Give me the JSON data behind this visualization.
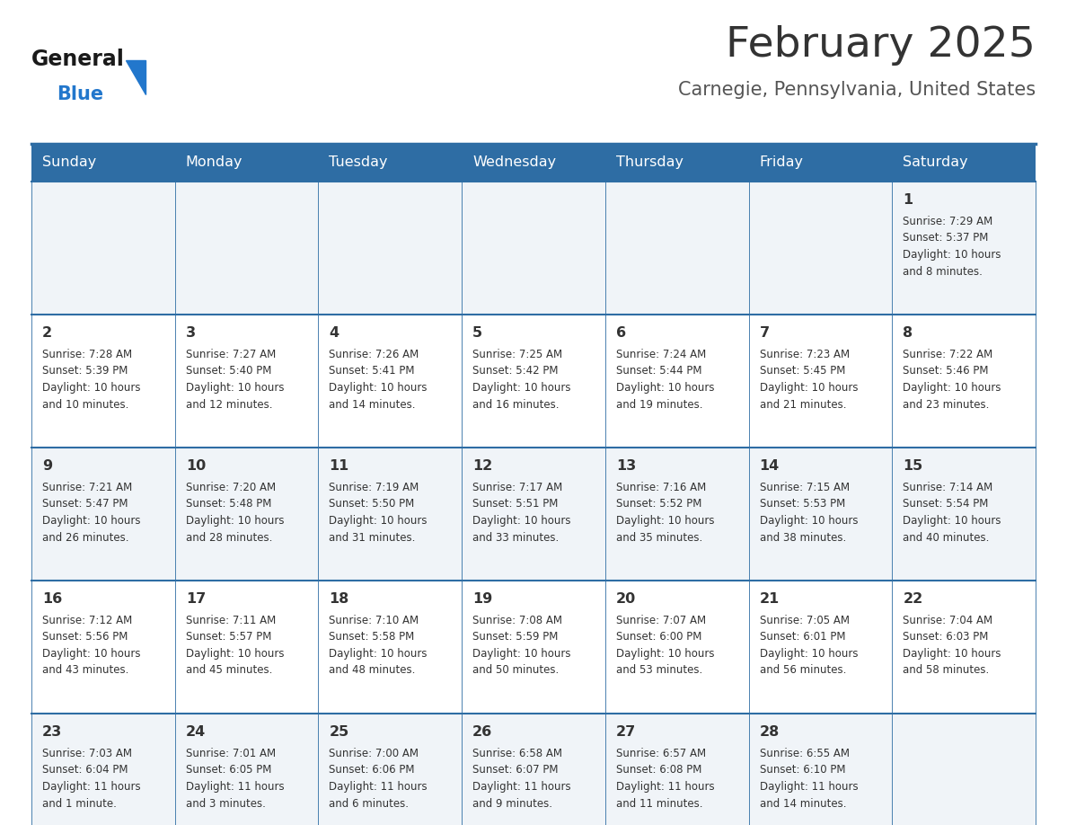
{
  "title": "February 2025",
  "subtitle": "Carnegie, Pennsylvania, United States",
  "header_bg": "#2e6da4",
  "header_text_color": "#ffffff",
  "days_of_week": [
    "Sunday",
    "Monday",
    "Tuesday",
    "Wednesday",
    "Thursday",
    "Friday",
    "Saturday"
  ],
  "row_bg_odd": "#f0f4f8",
  "row_bg_even": "#ffffff",
  "cell_border_color": "#2e6da4",
  "day_number_color": "#333333",
  "info_text_color": "#333333",
  "title_color": "#333333",
  "subtitle_color": "#555555",
  "logo_general_color": "#1a1a1a",
  "logo_blue_color": "#2277cc",
  "calendar_data": [
    [
      {
        "day": null,
        "info": null
      },
      {
        "day": null,
        "info": null
      },
      {
        "day": null,
        "info": null
      },
      {
        "day": null,
        "info": null
      },
      {
        "day": null,
        "info": null
      },
      {
        "day": null,
        "info": null
      },
      {
        "day": 1,
        "info": "Sunrise: 7:29 AM\nSunset: 5:37 PM\nDaylight: 10 hours\nand 8 minutes."
      }
    ],
    [
      {
        "day": 2,
        "info": "Sunrise: 7:28 AM\nSunset: 5:39 PM\nDaylight: 10 hours\nand 10 minutes."
      },
      {
        "day": 3,
        "info": "Sunrise: 7:27 AM\nSunset: 5:40 PM\nDaylight: 10 hours\nand 12 minutes."
      },
      {
        "day": 4,
        "info": "Sunrise: 7:26 AM\nSunset: 5:41 PM\nDaylight: 10 hours\nand 14 minutes."
      },
      {
        "day": 5,
        "info": "Sunrise: 7:25 AM\nSunset: 5:42 PM\nDaylight: 10 hours\nand 16 minutes."
      },
      {
        "day": 6,
        "info": "Sunrise: 7:24 AM\nSunset: 5:44 PM\nDaylight: 10 hours\nand 19 minutes."
      },
      {
        "day": 7,
        "info": "Sunrise: 7:23 AM\nSunset: 5:45 PM\nDaylight: 10 hours\nand 21 minutes."
      },
      {
        "day": 8,
        "info": "Sunrise: 7:22 AM\nSunset: 5:46 PM\nDaylight: 10 hours\nand 23 minutes."
      }
    ],
    [
      {
        "day": 9,
        "info": "Sunrise: 7:21 AM\nSunset: 5:47 PM\nDaylight: 10 hours\nand 26 minutes."
      },
      {
        "day": 10,
        "info": "Sunrise: 7:20 AM\nSunset: 5:48 PM\nDaylight: 10 hours\nand 28 minutes."
      },
      {
        "day": 11,
        "info": "Sunrise: 7:19 AM\nSunset: 5:50 PM\nDaylight: 10 hours\nand 31 minutes."
      },
      {
        "day": 12,
        "info": "Sunrise: 7:17 AM\nSunset: 5:51 PM\nDaylight: 10 hours\nand 33 minutes."
      },
      {
        "day": 13,
        "info": "Sunrise: 7:16 AM\nSunset: 5:52 PM\nDaylight: 10 hours\nand 35 minutes."
      },
      {
        "day": 14,
        "info": "Sunrise: 7:15 AM\nSunset: 5:53 PM\nDaylight: 10 hours\nand 38 minutes."
      },
      {
        "day": 15,
        "info": "Sunrise: 7:14 AM\nSunset: 5:54 PM\nDaylight: 10 hours\nand 40 minutes."
      }
    ],
    [
      {
        "day": 16,
        "info": "Sunrise: 7:12 AM\nSunset: 5:56 PM\nDaylight: 10 hours\nand 43 minutes."
      },
      {
        "day": 17,
        "info": "Sunrise: 7:11 AM\nSunset: 5:57 PM\nDaylight: 10 hours\nand 45 minutes."
      },
      {
        "day": 18,
        "info": "Sunrise: 7:10 AM\nSunset: 5:58 PM\nDaylight: 10 hours\nand 48 minutes."
      },
      {
        "day": 19,
        "info": "Sunrise: 7:08 AM\nSunset: 5:59 PM\nDaylight: 10 hours\nand 50 minutes."
      },
      {
        "day": 20,
        "info": "Sunrise: 7:07 AM\nSunset: 6:00 PM\nDaylight: 10 hours\nand 53 minutes."
      },
      {
        "day": 21,
        "info": "Sunrise: 7:05 AM\nSunset: 6:01 PM\nDaylight: 10 hours\nand 56 minutes."
      },
      {
        "day": 22,
        "info": "Sunrise: 7:04 AM\nSunset: 6:03 PM\nDaylight: 10 hours\nand 58 minutes."
      }
    ],
    [
      {
        "day": 23,
        "info": "Sunrise: 7:03 AM\nSunset: 6:04 PM\nDaylight: 11 hours\nand 1 minute."
      },
      {
        "day": 24,
        "info": "Sunrise: 7:01 AM\nSunset: 6:05 PM\nDaylight: 11 hours\nand 3 minutes."
      },
      {
        "day": 25,
        "info": "Sunrise: 7:00 AM\nSunset: 6:06 PM\nDaylight: 11 hours\nand 6 minutes."
      },
      {
        "day": 26,
        "info": "Sunrise: 6:58 AM\nSunset: 6:07 PM\nDaylight: 11 hours\nand 9 minutes."
      },
      {
        "day": 27,
        "info": "Sunrise: 6:57 AM\nSunset: 6:08 PM\nDaylight: 11 hours\nand 11 minutes."
      },
      {
        "day": 28,
        "info": "Sunrise: 6:55 AM\nSunset: 6:10 PM\nDaylight: 11 hours\nand 14 minutes."
      },
      {
        "day": null,
        "info": null
      }
    ]
  ]
}
